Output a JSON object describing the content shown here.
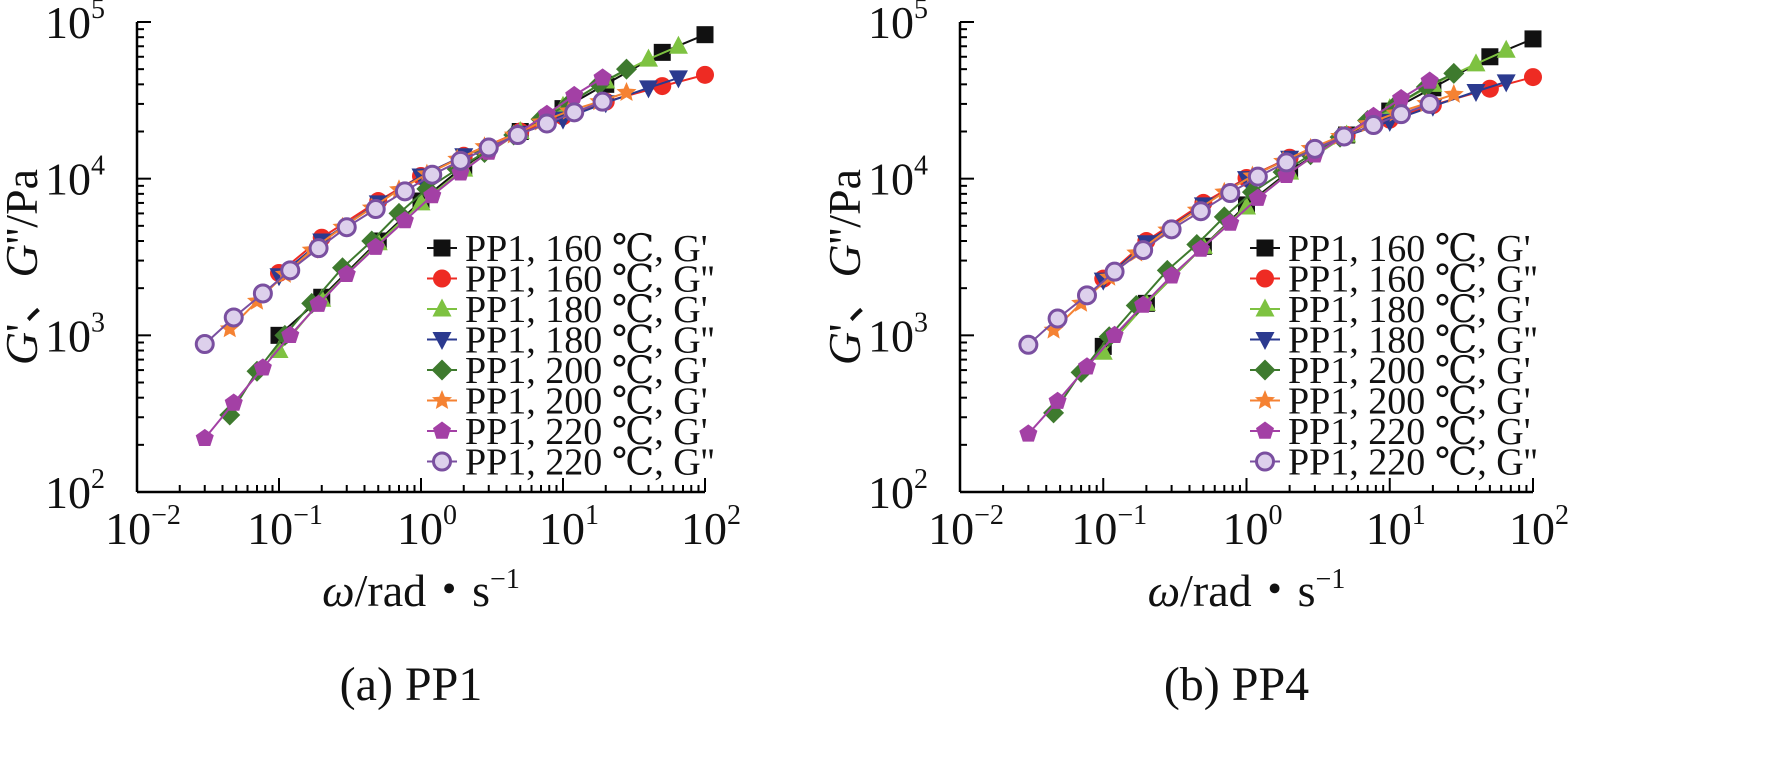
{
  "colors": {
    "black": "#111111",
    "red": "#ee2b23",
    "green": "#7ec241",
    "blue": "#2b3a8f",
    "darkgreen": "#3e7a2e",
    "orange": "#f58233",
    "magenta": "#a340a5",
    "purple": "#7a4fa0"
  },
  "chart_data": [
    {
      "type": "line",
      "caption": "(a) PP1",
      "xlabel_symbol": "ω",
      "xlabel_unit": "/rad・s",
      "xlabel_exp": "−1",
      "ylabel_g1": "G",
      "ylabel_sep": "'、",
      "ylabel_g2": "G",
      "ylabel_unit": "''/Pa",
      "x_scale": "log",
      "y_scale": "log",
      "xlim": [
        0.01,
        100
      ],
      "ylim": [
        100,
        100000
      ],
      "x_tick_labels": [
        {
          "base": "10",
          "exp": "−2"
        },
        {
          "base": "10",
          "exp": "−1"
        },
        {
          "base": "10",
          "exp": "0"
        },
        {
          "base": "10",
          "exp": "1"
        },
        {
          "base": "10",
          "exp": "2"
        }
      ],
      "y_tick_labels": [
        {
          "base": "10",
          "exp": "2"
        },
        {
          "base": "10",
          "exp": "3"
        },
        {
          "base": "10",
          "exp": "4"
        },
        {
          "base": "10",
          "exp": "5"
        }
      ],
      "legend_position": "center-right",
      "series": [
        {
          "name": "PP1, 160 ℃, G'",
          "color": "black",
          "marker": "square",
          "x": [
            0.1,
            0.2,
            0.5,
            1,
            2,
            5,
            10,
            20,
            50,
            100
          ],
          "y": [
            1000,
            1750,
            4000,
            7200,
            12000,
            20000,
            28000,
            40000,
            64000,
            83000
          ]
        },
        {
          "name": "PP1, 160 ℃, G''",
          "color": "red",
          "marker": "circle",
          "x": [
            0.1,
            0.2,
            0.5,
            1,
            2,
            5,
            10,
            20,
            50,
            100
          ],
          "y": [
            2500,
            4200,
            7200,
            10400,
            14000,
            20000,
            25000,
            31000,
            39000,
            46000
          ]
        },
        {
          "name": "PP1, 180 ℃, G'",
          "color": "green",
          "marker": "triangle-up",
          "x": [
            0.1,
            0.2,
            0.5,
            1,
            2,
            5,
            10,
            20,
            40,
            65
          ],
          "y": [
            800,
            1700,
            3900,
            7000,
            11500,
            20000,
            29000,
            42000,
            58000,
            70000
          ]
        },
        {
          "name": "PP1, 180 ℃, G''",
          "color": "blue",
          "marker": "triangle-down",
          "x": [
            0.1,
            0.2,
            0.5,
            1,
            2,
            5,
            10,
            20,
            40,
            65
          ],
          "y": [
            2400,
            4000,
            7000,
            10400,
            14000,
            19500,
            24000,
            30500,
            38000,
            44000
          ]
        },
        {
          "name": "PP1, 200 ℃, G'",
          "color": "darkgreen",
          "marker": "diamond",
          "x": [
            0.045,
            0.07,
            0.11,
            0.17,
            0.28,
            0.45,
            0.7,
            1.1,
            1.8,
            2.8,
            4.5,
            7,
            11,
            18,
            28
          ],
          "y": [
            310,
            590,
            1000,
            1600,
            2700,
            4000,
            6000,
            8600,
            11500,
            14700,
            19000,
            24000,
            30000,
            40000,
            50000
          ]
        },
        {
          "name": "PP1, 200 ℃, G'",
          "color": "orange",
          "marker": "star",
          "x": [
            0.045,
            0.07,
            0.11,
            0.17,
            0.28,
            0.45,
            0.7,
            1.1,
            1.8,
            2.8,
            4.5,
            7,
            11,
            18,
            28
          ],
          "y": [
            1100,
            1650,
            2450,
            3500,
            4900,
            6500,
            8500,
            10700,
            13300,
            16000,
            19000,
            23000,
            27000,
            31000,
            35500
          ]
        },
        {
          "name": "PP1, 220 ℃, G'",
          "color": "magenta",
          "marker": "pentagon",
          "x": [
            0.03,
            0.048,
            0.077,
            0.12,
            0.19,
            0.3,
            0.48,
            0.77,
            1.2,
            1.9,
            3,
            4.8,
            7.7,
            12,
            19
          ],
          "y": [
            220,
            370,
            620,
            1000,
            1580,
            2450,
            3650,
            5400,
            7800,
            10900,
            14800,
            19500,
            25800,
            34000,
            44000
          ]
        },
        {
          "name": "PP1, 220 ℃, G''",
          "color": "purple",
          "marker": "open-circle",
          "x": [
            0.03,
            0.048,
            0.077,
            0.12,
            0.19,
            0.3,
            0.48,
            0.77,
            1.2,
            1.9,
            3,
            4.8,
            7.7,
            12,
            19
          ],
          "y": [
            880,
            1300,
            1850,
            2600,
            3600,
            4900,
            6400,
            8300,
            10600,
            13000,
            15800,
            19000,
            22500,
            26500,
            31000
          ]
        }
      ]
    },
    {
      "type": "line",
      "caption": "(b) PP4",
      "xlabel_symbol": "ω",
      "xlabel_unit": "/rad・s",
      "xlabel_exp": "−1",
      "ylabel_g1": "G",
      "ylabel_sep": "'、",
      "ylabel_g2": "G",
      "ylabel_unit": "''/Pa",
      "x_scale": "log",
      "y_scale": "log",
      "xlim": [
        0.01,
        100
      ],
      "ylim": [
        100,
        100000
      ],
      "x_tick_labels": [
        {
          "base": "10",
          "exp": "−2"
        },
        {
          "base": "10",
          "exp": "−1"
        },
        {
          "base": "10",
          "exp": "0"
        },
        {
          "base": "10",
          "exp": "1"
        },
        {
          "base": "10",
          "exp": "2"
        }
      ],
      "y_tick_labels": [
        {
          "base": "10",
          "exp": "2"
        },
        {
          "base": "10",
          "exp": "3"
        },
        {
          "base": "10",
          "exp": "4"
        },
        {
          "base": "10",
          "exp": "5"
        }
      ],
      "legend_position": "center-right",
      "series": [
        {
          "name": "PP1, 160 ℃, G'",
          "color": "black",
          "marker": "square",
          "x": [
            0.1,
            0.2,
            0.5,
            1,
            2,
            5,
            10,
            20,
            50,
            100
          ],
          "y": [
            850,
            1600,
            3700,
            6800,
            11200,
            19000,
            27000,
            38000,
            60000,
            78000
          ]
        },
        {
          "name": "PP1, 160 ℃, G''",
          "color": "red",
          "marker": "circle",
          "x": [
            0.1,
            0.2,
            0.5,
            1,
            2,
            5,
            10,
            20,
            50,
            100
          ],
          "y": [
            2300,
            4000,
            7000,
            10100,
            13600,
            19000,
            23800,
            29500,
            37500,
            44500
          ]
        },
        {
          "name": "PP1, 180 ℃, G'",
          "color": "green",
          "marker": "triangle-up",
          "x": [
            0.1,
            0.2,
            0.5,
            1,
            2,
            5,
            10,
            20,
            40,
            65
          ],
          "y": [
            780,
            1600,
            3700,
            6600,
            11000,
            19000,
            28000,
            40000,
            54000,
            66000
          ]
        },
        {
          "name": "PP1, 180 ℃, G''",
          "color": "blue",
          "marker": "triangle-down",
          "x": [
            0.1,
            0.2,
            0.5,
            1,
            2,
            5,
            10,
            20,
            40,
            65
          ],
          "y": [
            2250,
            3900,
            6800,
            10000,
            13500,
            18800,
            23200,
            29000,
            36000,
            41500
          ]
        },
        {
          "name": "PP1, 200 ℃, G'",
          "color": "darkgreen",
          "marker": "diamond",
          "x": [
            0.045,
            0.07,
            0.11,
            0.17,
            0.28,
            0.45,
            0.7,
            1.1,
            1.8,
            2.8,
            4.5,
            7,
            11,
            18,
            28
          ],
          "y": [
            320,
            580,
            980,
            1550,
            2600,
            3800,
            5700,
            8200,
            11000,
            14200,
            18400,
            23500,
            29500,
            38500,
            47000
          ]
        },
        {
          "name": "PP1, 200 ℃, G'",
          "color": "orange",
          "marker": "star",
          "x": [
            0.045,
            0.07,
            0.11,
            0.17,
            0.28,
            0.45,
            0.7,
            1.1,
            1.8,
            2.8,
            4.5,
            7,
            11,
            18,
            28
          ],
          "y": [
            1080,
            1600,
            2350,
            3350,
            4700,
            6300,
            8200,
            10400,
            12900,
            15600,
            18600,
            22400,
            26200,
            30200,
            34500
          ]
        },
        {
          "name": "PP1, 220 ℃, G'",
          "color": "magenta",
          "marker": "pentagon",
          "x": [
            0.03,
            0.048,
            0.077,
            0.12,
            0.19,
            0.3,
            0.48,
            0.77,
            1.2,
            1.9,
            3,
            4.8,
            7.7,
            12,
            19
          ],
          "y": [
            235,
            380,
            630,
            1000,
            1560,
            2400,
            3550,
            5200,
            7500,
            10500,
            14200,
            18800,
            25000,
            32500,
            42000
          ]
        },
        {
          "name": "PP1, 220 ℃, G''",
          "color": "purple",
          "marker": "open-circle",
          "x": [
            0.03,
            0.048,
            0.077,
            0.12,
            0.19,
            0.3,
            0.48,
            0.77,
            1.2,
            1.9,
            3,
            4.8,
            7.7,
            12,
            19
          ],
          "y": [
            870,
            1280,
            1800,
            2550,
            3500,
            4750,
            6200,
            8100,
            10300,
            12700,
            15500,
            18600,
            22000,
            25800,
            30000
          ]
        }
      ]
    }
  ]
}
